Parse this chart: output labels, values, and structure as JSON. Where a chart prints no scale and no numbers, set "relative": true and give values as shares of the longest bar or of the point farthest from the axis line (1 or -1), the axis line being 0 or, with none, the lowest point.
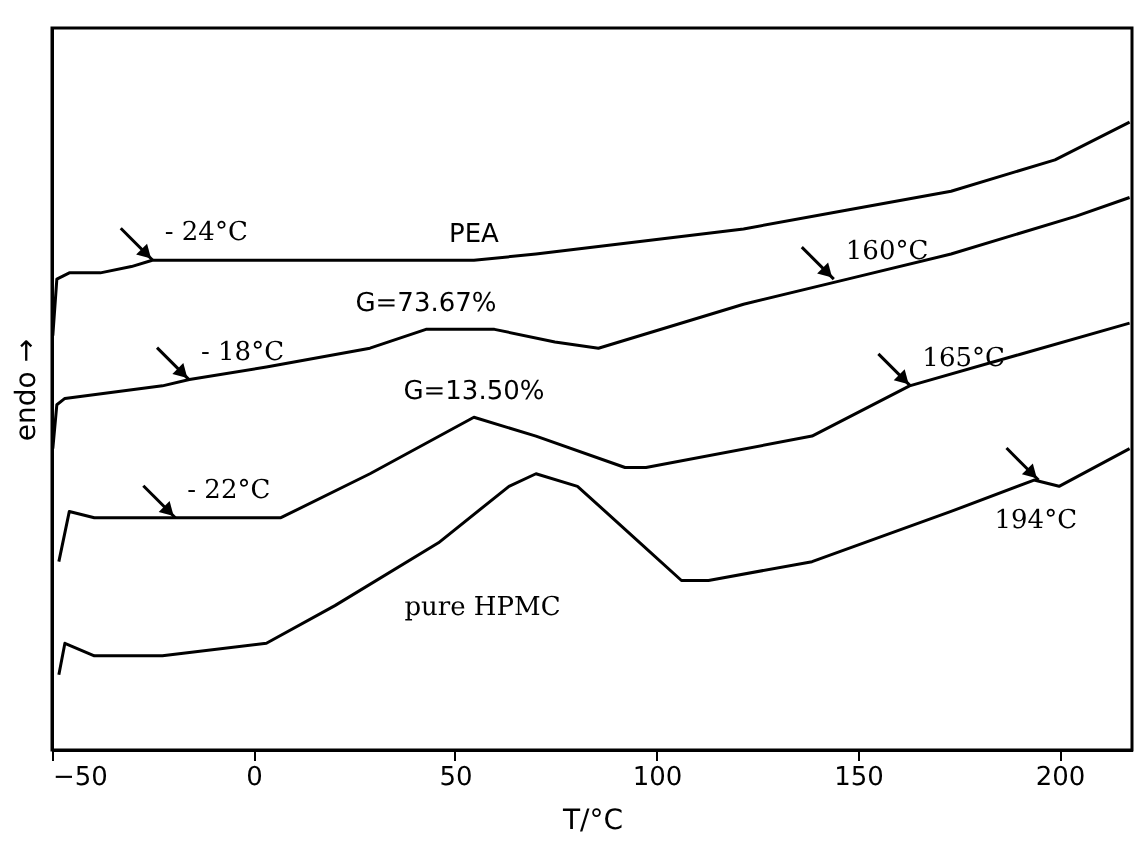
{
  "chart_data": {
    "type": "line",
    "relative": true,
    "xlabel": "T/°C",
    "ylabel": "endo →",
    "xlim": [
      -50,
      218
    ],
    "xticks": [
      -50,
      0,
      50,
      100,
      150,
      200
    ],
    "grid": false,
    "marker": "none",
    "line_style": "solid",
    "tick_labels": "x",
    "series": [
      {
        "name": "PEA",
        "color": "#000000",
        "x": [
          -49.8,
          -48.8,
          -45.7,
          -38,
          -30.3,
          -25.1,
          -7.1,
          28.9,
          54.7,
          70.1,
          95.9,
          121.6,
          147.4,
          173.1,
          198.9,
          217.4
        ],
        "values": [
          0.66,
          0.75,
          0.76,
          0.76,
          0.77,
          0.78,
          0.78,
          0.78,
          0.78,
          0.79,
          0.81,
          0.83,
          0.86,
          0.89,
          0.94,
          1.0
        ]
      },
      {
        "name": "G=73.67%",
        "color": "#000000",
        "x": [
          -49.8,
          -48.8,
          -46.8,
          -22.6,
          -15.9,
          3.2,
          28.9,
          42.8,
          59.8,
          74.8,
          85.6,
          121.6,
          147.4,
          173.1,
          204,
          217.4
        ],
        "values": [
          0.48,
          0.55,
          0.56,
          0.58,
          0.59,
          0.61,
          0.64,
          0.67,
          0.67,
          0.65,
          0.64,
          0.71,
          0.75,
          0.79,
          0.85,
          0.88
        ]
      },
      {
        "name": "G=13.50%",
        "color": "#000000",
        "x": [
          -48.3,
          -45.7,
          -39.5,
          6.8,
          28.9,
          54.7,
          70.1,
          92.2,
          97.4,
          138.6,
          162.8,
          190.1,
          217.4
        ],
        "values": [
          0.3,
          0.38,
          0.37,
          0.37,
          0.44,
          0.53,
          0.5,
          0.45,
          0.45,
          0.5,
          0.58,
          0.63,
          0.68
        ]
      },
      {
        "name": "pure HPMC",
        "color": "#000000",
        "x": [
          -48.3,
          -46.8,
          -39.5,
          -22.6,
          3.2,
          20.2,
          45.9,
          63.4,
          70.1,
          80.4,
          95.9,
          106.2,
          112.9,
          138.6,
          173.1,
          193.7,
          199.9,
          217.4
        ],
        "values": [
          0.12,
          0.17,
          0.15,
          0.15,
          0.17,
          0.23,
          0.33,
          0.42,
          0.44,
          0.42,
          0.33,
          0.27,
          0.27,
          0.3,
          0.38,
          0.43,
          0.42,
          0.48
        ]
      }
    ],
    "annotations": [
      {
        "text": "- 24°C",
        "x": -25,
        "y": 0.78
      },
      {
        "text": "- 18°C",
        "x": -16,
        "y": 0.59
      },
      {
        "text": "- 22°C",
        "x": -19.4,
        "y": 0.37
      },
      {
        "text": "160°C",
        "x": 144,
        "y": 0.75
      },
      {
        "text": "165°C",
        "x": 163,
        "y": 0.58
      },
      {
        "text": "194°C",
        "x": 194.8,
        "y": 0.43
      }
    ]
  }
}
